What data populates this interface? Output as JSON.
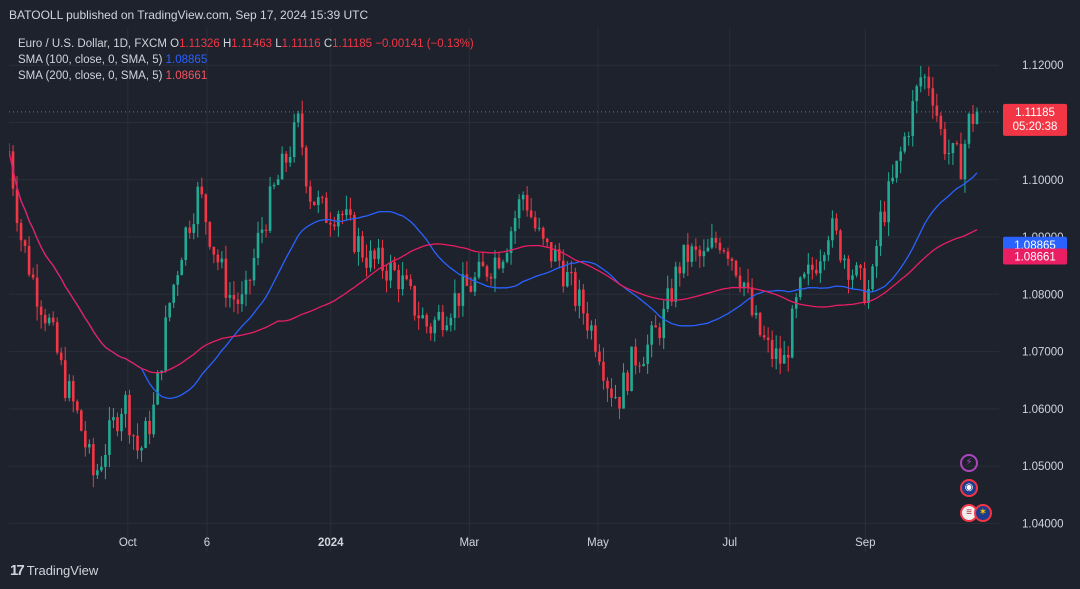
{
  "header": {
    "publisher_line": "BATOOLL published on TradingView.com, Sep 17, 2024 15:39 UTC"
  },
  "legend": {
    "symbol": "Euro / U.S. Dollar, 1D, FXCM",
    "o_label": "O",
    "o_value": "1.11326",
    "h_label": "H",
    "h_value": "1.11463",
    "l_label": "L",
    "l_value": "1.11116",
    "c_label": "C",
    "c_value": "1.11185",
    "change": "−0.00141 (−0.13%)",
    "sma100_label": "SMA (100, close, 0, SMA, 5)",
    "sma100_value": "1.08865",
    "sma200_label": "SMA (200, close, 0, SMA, 5)",
    "sma200_value": "1.08661"
  },
  "footer": {
    "brand": "TradingView"
  },
  "icons": [
    "lightning-icon",
    "event-icon",
    "flag-us-icon",
    "flag-eu-icon"
  ],
  "colors": {
    "background": "#1e222d",
    "grid": "#2a2e39",
    "up": "#22ab94",
    "down": "#f23645",
    "sma100": "#2962ff",
    "sma200": "#e91e63",
    "text": "#d1d4dc"
  },
  "chart_data": {
    "type": "candlestick",
    "symbol": "EURUSD",
    "ylim": [
      1.035,
      1.1265
    ],
    "y_ticks": [
      "1.12000",
      "1.11000",
      "1.10000",
      "1.09000",
      "1.08000",
      "1.07000",
      "1.06000",
      "1.05000",
      "1.04000"
    ],
    "x_ticks": [
      "Oct",
      "6",
      "2024",
      "Mar",
      "May",
      "Jul",
      "Sep"
    ],
    "x_tick_positions": [
      0.12,
      0.2,
      0.325,
      0.465,
      0.595,
      0.728,
      0.865
    ],
    "last_price_label": "1.11185",
    "countdown": "05:20:38",
    "sma100_label": "1.08865",
    "sma200_label": "1.08661",
    "anchors": [
      [
        0,
        1.105
      ],
      [
        12,
        1.09
      ],
      [
        25,
        1.082
      ],
      [
        40,
        1.075
      ],
      [
        55,
        1.065
      ],
      [
        70,
        1.058
      ],
      [
        85,
        1.048
      ],
      [
        100,
        1.055
      ],
      [
        115,
        1.062
      ],
      [
        130,
        1.052
      ],
      [
        145,
        1.06
      ],
      [
        160,
        1.078
      ],
      [
        175,
        1.09
      ],
      [
        190,
        1.098
      ],
      [
        205,
        1.088
      ],
      [
        220,
        1.08
      ],
      [
        235,
        1.078
      ],
      [
        250,
        1.09
      ],
      [
        265,
        1.098
      ],
      [
        280,
        1.105
      ],
      [
        290,
        1.11
      ],
      [
        300,
        1.098
      ],
      [
        315,
        1.094
      ],
      [
        330,
        1.095
      ],
      [
        345,
        1.09
      ],
      [
        360,
        1.086
      ],
      [
        375,
        1.085
      ],
      [
        390,
        1.083
      ],
      [
        405,
        1.078
      ],
      [
        420,
        1.074
      ],
      [
        435,
        1.077
      ],
      [
        450,
        1.08
      ],
      [
        465,
        1.082
      ],
      [
        480,
        1.085
      ],
      [
        495,
        1.088
      ],
      [
        505,
        1.093
      ],
      [
        515,
        1.098
      ],
      [
        525,
        1.092
      ],
      [
        535,
        1.088
      ],
      [
        550,
        1.086
      ],
      [
        565,
        1.08
      ],
      [
        575,
        1.077
      ],
      [
        590,
        1.071
      ],
      [
        600,
        1.064
      ],
      [
        610,
        1.062
      ],
      [
        625,
        1.069
      ],
      [
        640,
        1.071
      ],
      [
        655,
        1.076
      ],
      [
        670,
        1.085
      ],
      [
        680,
        1.087
      ],
      [
        695,
        1.086
      ],
      [
        710,
        1.09
      ],
      [
        720,
        1.088
      ],
      [
        735,
        1.082
      ],
      [
        745,
        1.075
      ],
      [
        760,
        1.07
      ],
      [
        775,
        1.068
      ],
      [
        790,
        1.08
      ],
      [
        805,
        1.085
      ],
      [
        820,
        1.092
      ],
      [
        835,
        1.087
      ],
      [
        850,
        1.082
      ],
      [
        862,
        1.08
      ],
      [
        870,
        1.092
      ],
      [
        885,
        1.1
      ],
      [
        900,
        1.11
      ],
      [
        912,
        1.118
      ],
      [
        922,
        1.117
      ],
      [
        932,
        1.108
      ],
      [
        942,
        1.104
      ],
      [
        952,
        1.103
      ],
      [
        960,
        1.11
      ],
      [
        968,
        1.112
      ]
    ]
  }
}
